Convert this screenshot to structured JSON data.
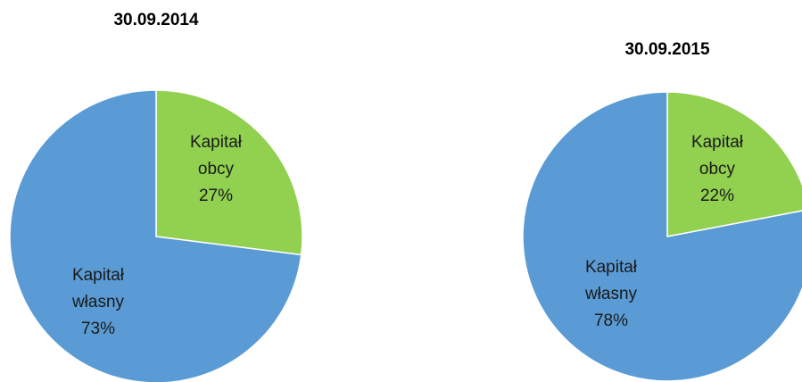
{
  "chart_data": [
    {
      "type": "pie",
      "title": "30.09.2014",
      "slices": [
        {
          "label_lines": [
            "Kapitał",
            "obcy",
            "27%"
          ],
          "value": 27,
          "color": "#92d050"
        },
        {
          "label_lines": [
            "Kapitał",
            "własny",
            "73%"
          ],
          "value": 73,
          "color": "#5b9bd5"
        }
      ]
    },
    {
      "type": "pie",
      "title": "30.09.2015",
      "slices": [
        {
          "label_lines": [
            "Kapitał",
            "obcy",
            "22%"
          ],
          "value": 22,
          "color": "#92d050"
        },
        {
          "label_lines": [
            "Kapitał",
            "własny",
            "78%"
          ],
          "value": 78,
          "color": "#5b9bd5"
        }
      ]
    }
  ]
}
